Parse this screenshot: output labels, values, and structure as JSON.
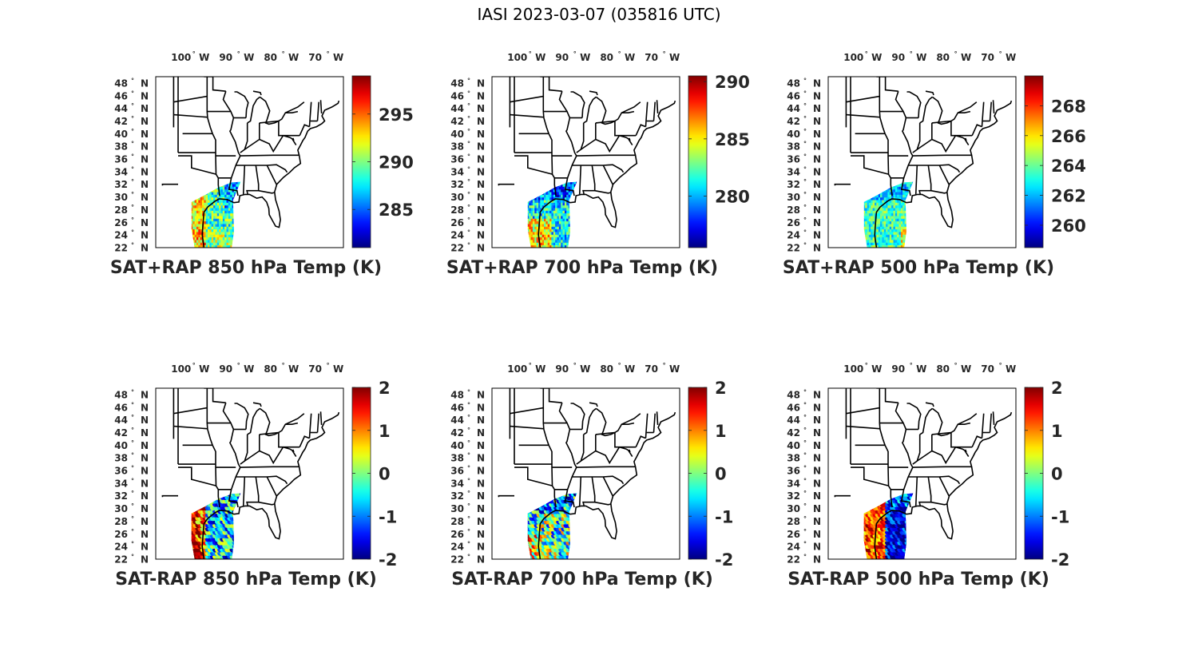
{
  "title": "IASI 2023-03-07 (035816 UTC)",
  "lon_labels": [
    "100",
    "90",
    "80",
    "70"
  ],
  "lon_hemisphere": "W",
  "lat_labels": [
    "48",
    "46",
    "44",
    "42",
    "40",
    "38",
    "36",
    "34",
    "32",
    "30",
    "28",
    "26",
    "24",
    "22"
  ],
  "lat_hemisphere": "N",
  "degree_symbol": "°",
  "colormap": "jet",
  "panels": [
    {
      "title": "SAT+RAP 850 hPa Temp (K)",
      "clim": [
        281,
        299
      ],
      "ticks": [
        "285",
        "290",
        "295"
      ],
      "tick_values": [
        285,
        290,
        295
      ],
      "field": "tsat850"
    },
    {
      "title": "SAT+RAP 700 hPa Temp (K)",
      "clim": [
        275.5,
        290.5
      ],
      "ticks": [
        "280",
        "285",
        "290"
      ],
      "tick_values": [
        280,
        285,
        290
      ],
      "field": "tsat700"
    },
    {
      "title": "SAT+RAP 500 hPa Temp (K)",
      "clim": [
        258.5,
        270
      ],
      "ticks": [
        "260",
        "262",
        "264",
        "266",
        "268"
      ],
      "tick_values": [
        260,
        262,
        264,
        266,
        268
      ],
      "field": "tsat500"
    },
    {
      "title": "SAT-RAP 850 hPa Temp (K)",
      "clim": [
        -2,
        2
      ],
      "ticks": [
        "-2",
        "-1",
        "0",
        "1",
        "2"
      ],
      "tick_values": [
        -2,
        -1,
        0,
        1,
        2
      ],
      "field": "diff850"
    },
    {
      "title": "SAT-RAP 700 hPa Temp (K)",
      "clim": [
        -2,
        2
      ],
      "ticks": [
        "-2",
        "-1",
        "0",
        "1",
        "2"
      ],
      "tick_values": [
        -2,
        -1,
        0,
        1,
        2
      ],
      "field": "diff700"
    },
    {
      "title": "SAT-RAP 500 hPa Temp (K)",
      "clim": [
        -2,
        2
      ],
      "ticks": [
        "-2",
        "-1",
        "0",
        "1",
        "2"
      ],
      "tick_values": [
        -2,
        -1,
        0,
        1,
        2
      ],
      "field": "diff500"
    }
  ]
}
